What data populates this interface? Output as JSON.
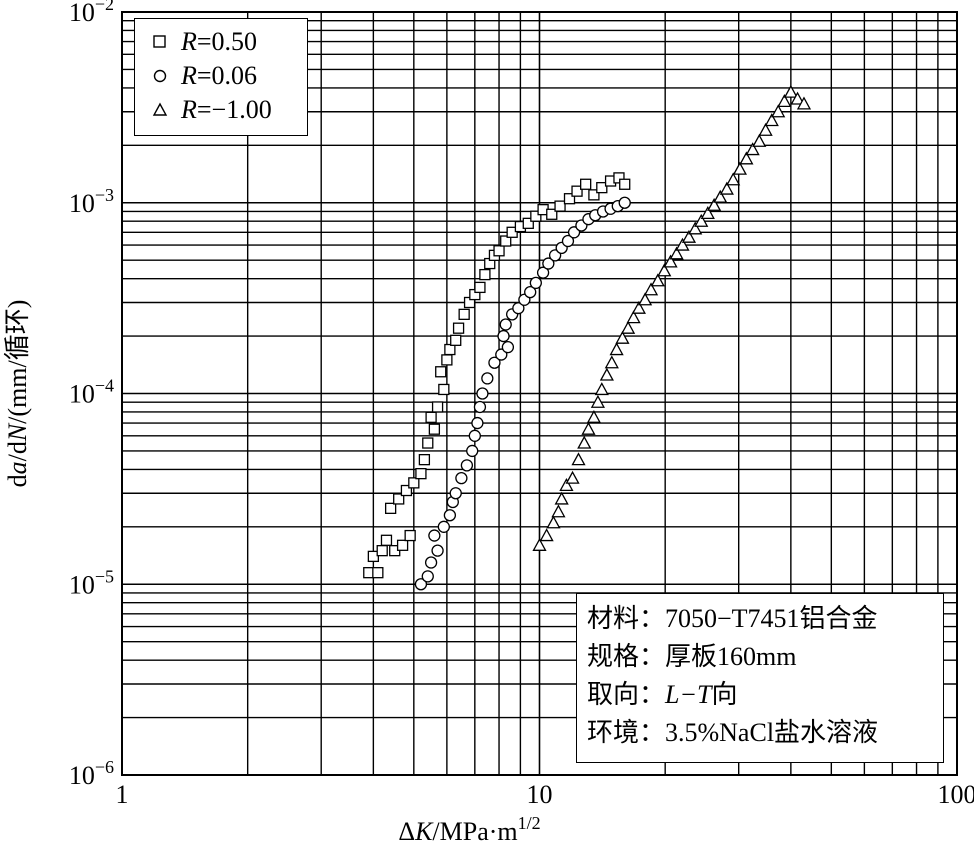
{
  "chart_data": {
    "type": "scatter",
    "xscale": "log",
    "yscale": "log",
    "xlim": [
      1,
      100
    ],
    "ylim": [
      1e-06,
      0.01
    ],
    "grid": true,
    "legend_placement": "top-left",
    "xlabel": "ΔK/MPa·m^1/2",
    "ylabel": "da/dN/(mm/循环)",
    "x_ticks": [
      "1",
      "10",
      "100"
    ],
    "y_ticks": [
      "10^-6",
      "10^-5",
      "10^-4",
      "10^-3",
      "10^-2"
    ],
    "series": [
      {
        "name": "R=0.50",
        "marker": "square",
        "points": [
          [
            3.9,
            1.15e-05
          ],
          [
            4.1,
            1.15e-05
          ],
          [
            4.0,
            1.4e-05
          ],
          [
            4.2,
            1.5e-05
          ],
          [
            4.3,
            1.7e-05
          ],
          [
            4.5,
            1.5e-05
          ],
          [
            4.7,
            1.6e-05
          ],
          [
            4.9,
            1.8e-05
          ],
          [
            4.4,
            2.5e-05
          ],
          [
            4.6,
            2.8e-05
          ],
          [
            4.8,
            3.1e-05
          ],
          [
            5.0,
            3.4e-05
          ],
          [
            5.2,
            3.8e-05
          ],
          [
            5.3,
            4.5e-05
          ],
          [
            5.4,
            5.5e-05
          ],
          [
            5.6,
            6.5e-05
          ],
          [
            5.5,
            7.5e-05
          ],
          [
            5.7,
            8.5e-05
          ],
          [
            5.9,
            0.000105
          ],
          [
            5.8,
            0.00013
          ],
          [
            6.0,
            0.00015
          ],
          [
            6.1,
            0.00017
          ],
          [
            6.3,
            0.00019
          ],
          [
            6.4,
            0.00022
          ],
          [
            6.6,
            0.00026
          ],
          [
            6.8,
            0.0003
          ],
          [
            7.0,
            0.00033
          ],
          [
            7.2,
            0.00036
          ],
          [
            7.4,
            0.00042
          ],
          [
            7.6,
            0.00048
          ],
          [
            7.8,
            0.00053
          ],
          [
            8.0,
            0.00056
          ],
          [
            8.3,
            0.00063
          ],
          [
            8.6,
            0.0007
          ],
          [
            9.0,
            0.00075
          ],
          [
            9.4,
            0.00078
          ],
          [
            9.8,
            0.00085
          ],
          [
            10.2,
            0.00092
          ],
          [
            10.7,
            0.00087
          ],
          [
            11.2,
            0.00096
          ],
          [
            11.8,
            0.00105
          ],
          [
            12.3,
            0.00115
          ],
          [
            12.9,
            0.00125
          ],
          [
            13.5,
            0.0011
          ],
          [
            14.1,
            0.0012
          ],
          [
            14.8,
            0.0013
          ],
          [
            15.5,
            0.00135
          ],
          [
            16.0,
            0.00125
          ]
        ]
      },
      {
        "name": "R=0.06",
        "marker": "circle",
        "points": [
          [
            5.2,
            1e-05
          ],
          [
            5.4,
            1.1e-05
          ],
          [
            5.5,
            1.3e-05
          ],
          [
            5.7,
            1.5e-05
          ],
          [
            5.6,
            1.8e-05
          ],
          [
            5.9,
            2e-05
          ],
          [
            6.1,
            2.3e-05
          ],
          [
            6.2,
            2.7e-05
          ],
          [
            6.3,
            3e-05
          ],
          [
            6.5,
            3.6e-05
          ],
          [
            6.7,
            4.2e-05
          ],
          [
            6.9,
            5e-05
          ],
          [
            7.0,
            6e-05
          ],
          [
            7.1,
            7e-05
          ],
          [
            7.2,
            8.5e-05
          ],
          [
            7.3,
            0.0001
          ],
          [
            7.5,
            0.00012
          ],
          [
            7.8,
            0.000145
          ],
          [
            8.1,
            0.00016
          ],
          [
            8.4,
            0.000175
          ],
          [
            8.2,
            0.0002
          ],
          [
            8.3,
            0.00023
          ],
          [
            8.6,
            0.00026
          ],
          [
            8.9,
            0.00028
          ],
          [
            9.2,
            0.00031
          ],
          [
            9.5,
            0.00034
          ],
          [
            9.8,
            0.00038
          ],
          [
            10.2,
            0.00043
          ],
          [
            10.5,
            0.00048
          ],
          [
            10.9,
            0.00053
          ],
          [
            11.3,
            0.00058
          ],
          [
            11.7,
            0.00063
          ],
          [
            12.1,
            0.0007
          ],
          [
            12.6,
            0.00076
          ],
          [
            13.1,
            0.00082
          ],
          [
            13.6,
            0.00086
          ],
          [
            14.2,
            0.0009
          ],
          [
            14.8,
            0.00093
          ],
          [
            15.4,
            0.00096
          ],
          [
            16.0,
            0.001
          ]
        ]
      },
      {
        "name": "R=−1.00",
        "marker": "triangle",
        "points": [
          [
            10.0,
            1.6e-05
          ],
          [
            10.4,
            1.8e-05
          ],
          [
            10.8,
            2.1e-05
          ],
          [
            11.1,
            2.4e-05
          ],
          [
            11.3,
            2.8e-05
          ],
          [
            11.6,
            3.3e-05
          ],
          [
            12.0,
            3.6e-05
          ],
          [
            12.4,
            4.5e-05
          ],
          [
            12.8,
            5.5e-05
          ],
          [
            13.1,
            6.5e-05
          ],
          [
            13.5,
            7.5e-05
          ],
          [
            13.8,
            9e-05
          ],
          [
            14.1,
            0.000105
          ],
          [
            14.5,
            0.000125
          ],
          [
            14.9,
            0.000145
          ],
          [
            15.3,
            0.00017
          ],
          [
            15.8,
            0.000195
          ],
          [
            16.3,
            0.00022
          ],
          [
            16.8,
            0.00025
          ],
          [
            17.3,
            0.00028
          ],
          [
            17.9,
            0.00031
          ],
          [
            18.5,
            0.00035
          ],
          [
            19.2,
            0.00039
          ],
          [
            19.9,
            0.00044
          ],
          [
            20.6,
            0.00049
          ],
          [
            21.3,
            0.00054
          ],
          [
            22.0,
            0.0006
          ],
          [
            22.8,
            0.00066
          ],
          [
            23.6,
            0.00073
          ],
          [
            24.4,
            0.0008
          ],
          [
            25.3,
            0.00088
          ],
          [
            26.2,
            0.00097
          ],
          [
            27.1,
            0.00107
          ],
          [
            28.1,
            0.00118
          ],
          [
            29.1,
            0.00132
          ],
          [
            30.2,
            0.0015
          ],
          [
            31.3,
            0.0017
          ],
          [
            32.4,
            0.0019
          ],
          [
            33.6,
            0.0021
          ],
          [
            34.8,
            0.0024
          ],
          [
            36.0,
            0.0027
          ],
          [
            37.3,
            0.003
          ],
          [
            38.6,
            0.0034
          ],
          [
            40.0,
            0.0038
          ],
          [
            41.5,
            0.0035
          ],
          [
            43.0,
            0.0033
          ]
        ]
      }
    ]
  },
  "info": {
    "material": "材料：7050−T7451铝合金",
    "spec": "规格：厚板160mm",
    "orientation_prefix": "取向：",
    "orientation_value": "L−T",
    "orientation_suffix": "向",
    "environment": "环境：3.5%NaCl盐水溶液"
  },
  "legend": {
    "items": [
      {
        "r": "R",
        "value": "=0.50"
      },
      {
        "r": "R",
        "value": "=0.06"
      },
      {
        "r": "R",
        "value": "=−1.00"
      }
    ]
  }
}
